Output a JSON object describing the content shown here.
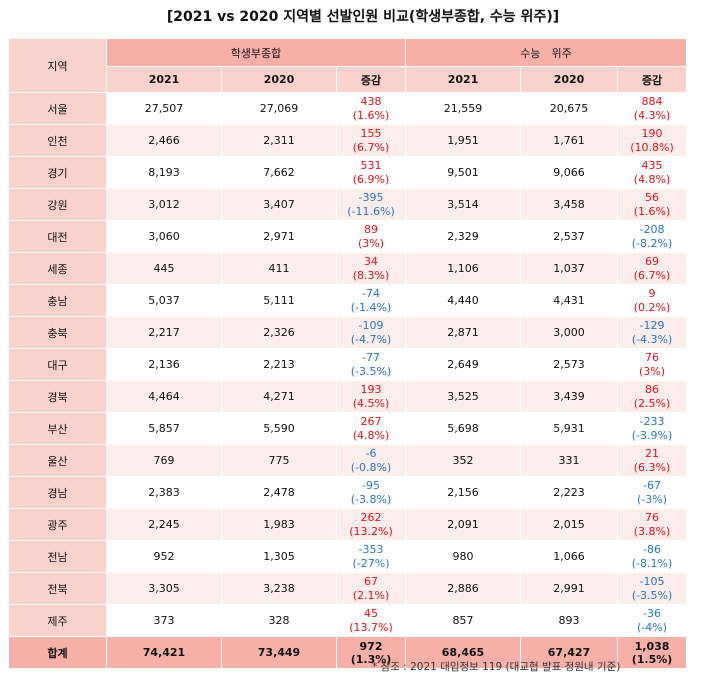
{
  "title": "[2021 vs 2020 지역별 선발인원 비교(학생부종합, 수능 위주)]",
  "headers": {
    "region": "지역",
    "group1": "학생부종합",
    "group2": "수능　위주",
    "y2021": "2021",
    "y2020": "2020",
    "change": "증감"
  },
  "rows": [
    {
      "region": "서울",
      "s2021": "27,507",
      "s2020": "27,069",
      "s_chg": "438",
      "s_pct": "(1.6%)",
      "s_dir": "pos",
      "c2021": "21,559",
      "c2020": "20,675",
      "c_chg": "884",
      "c_pct": "(4.3%)",
      "c_dir": "pos"
    },
    {
      "region": "인천",
      "s2021": "2,466",
      "s2020": "2,311",
      "s_chg": "155",
      "s_pct": "(6.7%)",
      "s_dir": "pos",
      "c2021": "1,951",
      "c2020": "1,761",
      "c_chg": "190",
      "c_pct": "(10.8%)",
      "c_dir": "pos"
    },
    {
      "region": "경기",
      "s2021": "8,193",
      "s2020": "7,662",
      "s_chg": "531",
      "s_pct": "(6.9%)",
      "s_dir": "pos",
      "c2021": "9,501",
      "c2020": "9,066",
      "c_chg": "435",
      "c_pct": "(4.8%)",
      "c_dir": "pos"
    },
    {
      "region": "강원",
      "s2021": "3,012",
      "s2020": "3,407",
      "s_chg": "-395",
      "s_pct": "(-11.6%)",
      "s_dir": "neg",
      "c2021": "3,514",
      "c2020": "3,458",
      "c_chg": "56",
      "c_pct": "(1.6%)",
      "c_dir": "pos"
    },
    {
      "region": "대전",
      "s2021": "3,060",
      "s2020": "2,971",
      "s_chg": "89",
      "s_pct": "(3%)",
      "s_dir": "pos",
      "c2021": "2,329",
      "c2020": "2,537",
      "c_chg": "-208",
      "c_pct": "(-8.2%)",
      "c_dir": "neg"
    },
    {
      "region": "세종",
      "s2021": "445",
      "s2020": "411",
      "s_chg": "34",
      "s_pct": "(8.3%)",
      "s_dir": "pos",
      "c2021": "1,106",
      "c2020": "1,037",
      "c_chg": "69",
      "c_pct": "(6.7%)",
      "c_dir": "pos"
    },
    {
      "region": "충남",
      "s2021": "5,037",
      "s2020": "5,111",
      "s_chg": "-74",
      "s_pct": "(-1.4%)",
      "s_dir": "neg",
      "c2021": "4,440",
      "c2020": "4,431",
      "c_chg": "9",
      "c_pct": "(0.2%)",
      "c_dir": "pos"
    },
    {
      "region": "충북",
      "s2021": "2,217",
      "s2020": "2,326",
      "s_chg": "-109",
      "s_pct": "(-4.7%)",
      "s_dir": "neg",
      "c2021": "2,871",
      "c2020": "3,000",
      "c_chg": "-129",
      "c_pct": "(-4.3%)",
      "c_dir": "neg"
    },
    {
      "region": "대구",
      "s2021": "2,136",
      "s2020": "2,213",
      "s_chg": "-77",
      "s_pct": "(-3.5%)",
      "s_dir": "neg",
      "c2021": "2,649",
      "c2020": "2,573",
      "c_chg": "76",
      "c_pct": "(3%)",
      "c_dir": "pos"
    },
    {
      "region": "경북",
      "s2021": "4,464",
      "s2020": "4,271",
      "s_chg": "193",
      "s_pct": "(4.5%)",
      "s_dir": "pos",
      "c2021": "3,525",
      "c2020": "3,439",
      "c_chg": "86",
      "c_pct": "(2.5%)",
      "c_dir": "pos"
    },
    {
      "region": "부산",
      "s2021": "5,857",
      "s2020": "5,590",
      "s_chg": "267",
      "s_pct": "(4.8%)",
      "s_dir": "pos",
      "c2021": "5,698",
      "c2020": "5,931",
      "c_chg": "-233",
      "c_pct": "(-3.9%)",
      "c_dir": "neg"
    },
    {
      "region": "울산",
      "s2021": "769",
      "s2020": "775",
      "s_chg": "-6",
      "s_pct": "(-0.8%)",
      "s_dir": "neg",
      "c2021": "352",
      "c2020": "331",
      "c_chg": "21",
      "c_pct": "(6.3%)",
      "c_dir": "pos"
    },
    {
      "region": "경남",
      "s2021": "2,383",
      "s2020": "2,478",
      "s_chg": "-95",
      "s_pct": "(-3.8%)",
      "s_dir": "neg",
      "c2021": "2,156",
      "c2020": "2,223",
      "c_chg": "-67",
      "c_pct": "(-3%)",
      "c_dir": "neg"
    },
    {
      "region": "광주",
      "s2021": "2,245",
      "s2020": "1,983",
      "s_chg": "262",
      "s_pct": "(13.2%)",
      "s_dir": "pos",
      "c2021": "2,091",
      "c2020": "2,015",
      "c_chg": "76",
      "c_pct": "(3.8%)",
      "c_dir": "pos"
    },
    {
      "region": "전남",
      "s2021": "952",
      "s2020": "1,305",
      "s_chg": "-353",
      "s_pct": "(-27%)",
      "s_dir": "neg",
      "c2021": "980",
      "c2020": "1,066",
      "c_chg": "-86",
      "c_pct": "(-8.1%)",
      "c_dir": "neg"
    },
    {
      "region": "전북",
      "s2021": "3,305",
      "s2020": "3,238",
      "s_chg": "67",
      "s_pct": "(2.1%)",
      "s_dir": "pos",
      "c2021": "2,886",
      "c2020": "2,991",
      "c_chg": "-105",
      "c_pct": "(-3.5%)",
      "c_dir": "neg"
    },
    {
      "region": "제주",
      "s2021": "373",
      "s2020": "328",
      "s_chg": "45",
      "s_pct": "(13.7%)",
      "s_dir": "pos",
      "c2021": "857",
      "c2020": "893",
      "c_chg": "-36",
      "c_pct": "(-4%)",
      "c_dir": "neg"
    }
  ],
  "total": {
    "region": "합계",
    "s2021": "74,421",
    "s2020": "73,449",
    "s_chg": "972",
    "s_pct": "(1.3%)",
    "c2021": "68,465",
    "c2020": "67,427",
    "c_chg": "1,038",
    "c_pct": "(1.5%)"
  },
  "footnote": "* 참조 : 2021 대입정보 119 (대교협 발표 정원내 기준)",
  "colors": {
    "header": "#f7b0a7",
    "subheader": "#fbd2cb",
    "row_alt": "#fdeeed",
    "positive": "#e0141b",
    "negative": "#2576c9"
  }
}
